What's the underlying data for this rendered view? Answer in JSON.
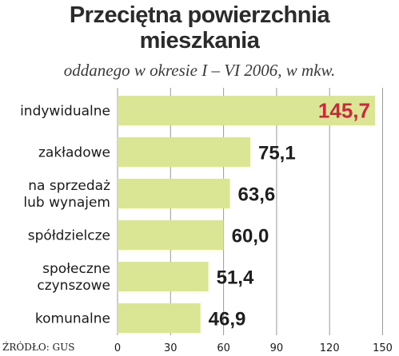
{
  "title_line1": "Przeciętna powierzchnia",
  "title_line2": "mieszkania",
  "subtitle": "oddanego w okresie I – VI 2006, w mkw.",
  "source": "ŹRÓDŁO: GUS",
  "colors": {
    "bar": "#dbe695",
    "grid": "#9a9a9a",
    "highlight": "#d0243f"
  },
  "chart_data": {
    "type": "bar",
    "orientation": "horizontal",
    "categories": [
      [
        "indywidualne"
      ],
      [
        "zakładowe"
      ],
      [
        "na sprzedaż",
        "lub wynajem"
      ],
      [
        "spółdzielcze"
      ],
      [
        "społeczne",
        "czynszowe"
      ],
      [
        "komunalne"
      ]
    ],
    "values": [
      145.7,
      75.1,
      63.6,
      60.0,
      51.4,
      46.9
    ],
    "value_labels": [
      "145,7",
      "75,1",
      "63,6",
      "60,0",
      "51,4",
      "46,9"
    ],
    "highlight_index": 0,
    "xlim": [
      0,
      150
    ],
    "xticks": [
      0,
      30,
      60,
      90,
      120,
      150
    ],
    "grid": "vertical"
  }
}
